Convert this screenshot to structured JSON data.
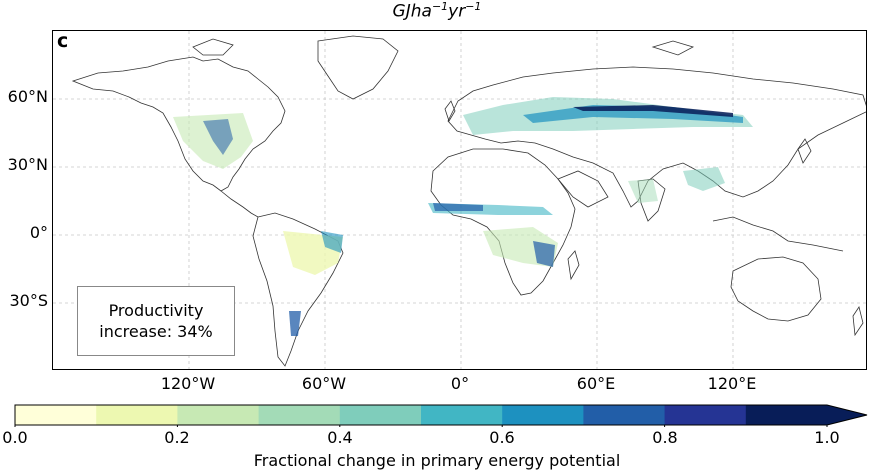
{
  "title": {
    "text": "GJha",
    "exp1": "−1",
    "mid": "yr",
    "exp2": "−1"
  },
  "panel_letter": "c",
  "annotation": {
    "line1": "Productivity",
    "line2": "increase: 34%"
  },
  "lat_labels": [
    "60°N",
    "30°N",
    "0°",
    "30°S"
  ],
  "lon_labels": [
    "120°W",
    "60°W",
    "0°",
    "60°E",
    "120°E"
  ],
  "colorbar": {
    "label": "Fractional change in primary energy potential",
    "ticks": [
      "0.0",
      "0.2",
      "0.4",
      "0.6",
      "0.8",
      "1.0"
    ],
    "colors": [
      "#ffffd9",
      "#edf8b1",
      "#c7e9b4",
      "#a3dbb7",
      "#7fcdbb",
      "#41b6c4",
      "#1d91c0",
      "#225ea8",
      "#253494",
      "#081d58"
    ],
    "range": [
      0,
      1
    ],
    "extend": "max"
  }
}
